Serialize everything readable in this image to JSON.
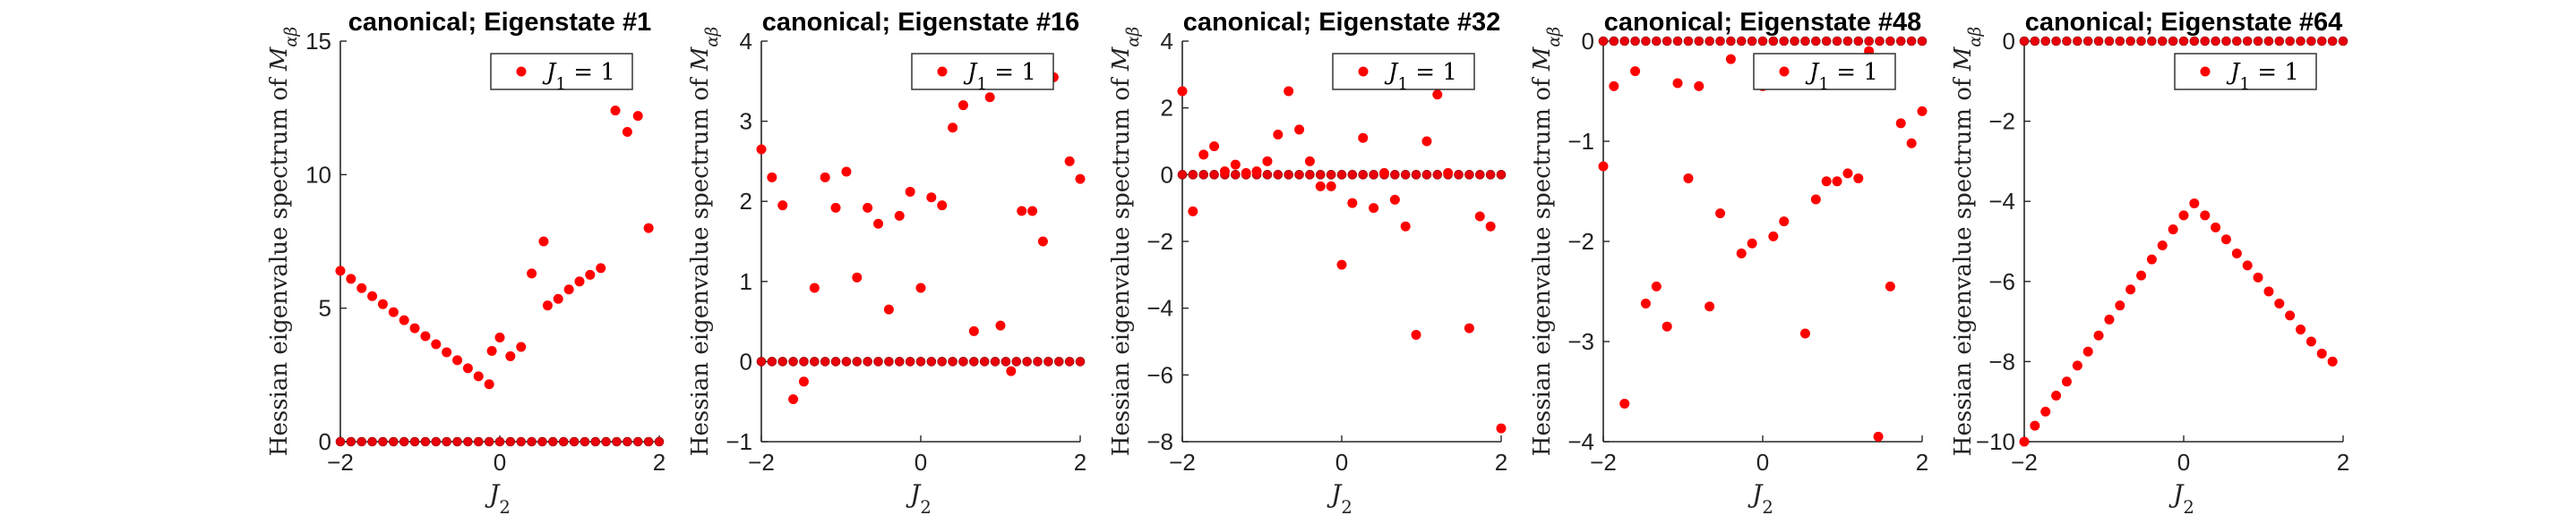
{
  "chart_data": [
    {
      "type": "scatter",
      "title": "canonical; Eigenstate #1",
      "xlabel": "J_2",
      "ylabel": "Hessian eigenvalue spectrum of M_{αβ}",
      "xlim": [
        -2,
        2
      ],
      "ylim": [
        0,
        15
      ],
      "xticks": [
        -2,
        0,
        2
      ],
      "yticks": [
        0,
        5,
        10,
        15
      ],
      "legend": [
        "J_1 = 1"
      ],
      "legend_position": "top-right",
      "color": "#ff0000",
      "zero_line": true,
      "points": [
        [
          -2.0,
          6.4
        ],
        [
          -1.867,
          6.1
        ],
        [
          -1.733,
          5.75
        ],
        [
          -1.6,
          5.45
        ],
        [
          -1.467,
          5.15
        ],
        [
          -1.333,
          4.85
        ],
        [
          -1.2,
          4.55
        ],
        [
          -1.067,
          4.25
        ],
        [
          -0.933,
          3.95
        ],
        [
          -0.8,
          3.65
        ],
        [
          -0.667,
          3.35
        ],
        [
          -0.533,
          3.05
        ],
        [
          -0.4,
          2.75
        ],
        [
          -0.267,
          2.45
        ],
        [
          -0.133,
          2.15
        ],
        [
          -0.1,
          3.4
        ],
        [
          0.0,
          3.9
        ],
        [
          0.133,
          3.2
        ],
        [
          0.267,
          3.55
        ],
        [
          0.4,
          6.3
        ],
        [
          0.55,
          7.5
        ],
        [
          0.6,
          5.1
        ],
        [
          0.733,
          5.35
        ],
        [
          0.867,
          5.7
        ],
        [
          1.0,
          6.0
        ],
        [
          1.133,
          6.25
        ],
        [
          1.267,
          6.5
        ],
        [
          1.45,
          12.4
        ],
        [
          1.6,
          11.6
        ],
        [
          1.733,
          12.2
        ],
        [
          1.867,
          8.0
        ]
      ]
    },
    {
      "type": "scatter",
      "title": "canonical; Eigenstate #16",
      "xlabel": "J_2",
      "ylabel": "Hessian eigenvalue spectrum of M_{αβ}",
      "xlim": [
        -2,
        2
      ],
      "ylim": [
        -1,
        4
      ],
      "xticks": [
        -2,
        0,
        2
      ],
      "yticks": [
        -1,
        0,
        1,
        2,
        3,
        4
      ],
      "legend": [
        "J_1 = 1"
      ],
      "legend_position": "top-right",
      "color": "#ff0000",
      "zero_line": true,
      "points": [
        [
          -2.0,
          2.65
        ],
        [
          -1.867,
          2.3
        ],
        [
          -1.733,
          1.95
        ],
        [
          -1.6,
          -0.47
        ],
        [
          -1.467,
          -0.25
        ],
        [
          -1.333,
          0.92
        ],
        [
          -1.2,
          2.3
        ],
        [
          -1.067,
          1.92
        ],
        [
          -0.933,
          2.37
        ],
        [
          -0.8,
          1.05
        ],
        [
          -0.667,
          1.92
        ],
        [
          -0.533,
          1.72
        ],
        [
          -0.4,
          0.65
        ],
        [
          -0.267,
          1.82
        ],
        [
          -0.133,
          2.12
        ],
        [
          0.0,
          0.92
        ],
        [
          0.133,
          2.05
        ],
        [
          0.267,
          1.95
        ],
        [
          0.4,
          2.92
        ],
        [
          0.533,
          3.2
        ],
        [
          0.667,
          0.38
        ],
        [
          0.867,
          3.3
        ],
        [
          1.0,
          0.45
        ],
        [
          1.133,
          -0.12
        ],
        [
          1.267,
          1.88
        ],
        [
          1.4,
          1.88
        ],
        [
          1.533,
          1.5
        ],
        [
          1.667,
          3.55
        ],
        [
          1.867,
          2.5
        ],
        [
          2.0,
          2.28
        ]
      ]
    },
    {
      "type": "scatter",
      "title": "canonical; Eigenstate #32",
      "xlabel": "J_2",
      "ylabel": "Hessian eigenvalue spectrum of M_{αβ}",
      "xlim": [
        -2,
        2
      ],
      "ylim": [
        -8,
        4
      ],
      "xticks": [
        -2,
        0,
        2
      ],
      "yticks": [
        -8,
        -6,
        -4,
        -2,
        0,
        2,
        4
      ],
      "legend": [
        "J_1 = 1"
      ],
      "legend_position": "top-right",
      "color": "#ff0000",
      "zero_line": true,
      "points": [
        [
          -2.0,
          2.5
        ],
        [
          -1.867,
          -1.1
        ],
        [
          -1.733,
          0.6
        ],
        [
          -1.6,
          0.85
        ],
        [
          -1.467,
          0.1
        ],
        [
          -1.333,
          0.3
        ],
        [
          -1.2,
          0.05
        ],
        [
          -1.067,
          0.1
        ],
        [
          -0.933,
          0.4
        ],
        [
          -0.8,
          1.2
        ],
        [
          -0.667,
          2.5
        ],
        [
          -0.533,
          1.35
        ],
        [
          -0.4,
          0.4
        ],
        [
          -0.267,
          -0.35
        ],
        [
          -0.133,
          -0.35
        ],
        [
          0.0,
          -2.7
        ],
        [
          0.133,
          -0.85
        ],
        [
          0.267,
          1.1
        ],
        [
          0.4,
          -1.0
        ],
        [
          0.533,
          0.05
        ],
        [
          0.667,
          -0.75
        ],
        [
          0.8,
          -1.55
        ],
        [
          0.933,
          -4.8
        ],
        [
          1.067,
          1.0
        ],
        [
          1.2,
          2.4
        ],
        [
          1.333,
          0.05
        ],
        [
          1.6,
          -4.6
        ],
        [
          1.733,
          -1.25
        ],
        [
          1.867,
          -1.55
        ],
        [
          2.0,
          -7.6
        ]
      ]
    },
    {
      "type": "scatter",
      "title": "canonical; Eigenstate #48",
      "xlabel": "J_2",
      "ylabel": "Hessian eigenvalue spectrum of M_{αβ}",
      "xlim": [
        -2,
        2
      ],
      "ylim": [
        -4,
        0
      ],
      "xticks": [
        -2,
        0,
        2
      ],
      "yticks": [
        -4,
        -3,
        -2,
        -1,
        0
      ],
      "legend": [
        "J_1 = 1"
      ],
      "legend_position": "top-right",
      "color": "#ff0000",
      "zero_line": true,
      "points": [
        [
          -2.0,
          -1.25
        ],
        [
          -1.867,
          -0.45
        ],
        [
          -1.733,
          -3.62
        ],
        [
          -1.6,
          -0.3
        ],
        [
          -1.467,
          -2.62
        ],
        [
          -1.333,
          -2.45
        ],
        [
          -1.2,
          -2.85
        ],
        [
          -1.067,
          -0.42
        ],
        [
          -0.933,
          -1.37
        ],
        [
          -0.8,
          -0.45
        ],
        [
          -0.667,
          -2.65
        ],
        [
          -0.533,
          -1.72
        ],
        [
          -0.4,
          -0.18
        ],
        [
          -0.267,
          -2.12
        ],
        [
          -0.133,
          -2.02
        ],
        [
          0.0,
          -0.45
        ],
        [
          0.133,
          -1.95
        ],
        [
          0.267,
          -1.8
        ],
        [
          0.4,
          -0.42
        ],
        [
          0.533,
          -2.92
        ],
        [
          0.667,
          -1.58
        ],
        [
          0.8,
          -1.4
        ],
        [
          0.933,
          -1.4
        ],
        [
          1.067,
          -1.32
        ],
        [
          1.2,
          -1.37
        ],
        [
          1.333,
          -0.1
        ],
        [
          1.45,
          -3.95
        ],
        [
          1.6,
          -2.45
        ],
        [
          1.733,
          -0.82
        ],
        [
          1.867,
          -1.02
        ],
        [
          2.0,
          -0.7
        ]
      ]
    },
    {
      "type": "scatter",
      "title": "canonical; Eigenstate #64",
      "xlabel": "J_2",
      "ylabel": "Hessian eigenvalue spectrum of M_{αβ}",
      "xlim": [
        -2,
        2
      ],
      "ylim": [
        -10,
        0
      ],
      "xticks": [
        -2,
        0,
        2
      ],
      "yticks": [
        -10,
        -8,
        -6,
        -4,
        -2,
        0
      ],
      "legend": [
        "J_1 = 1"
      ],
      "legend_position": "top-right",
      "color": "#ff0000",
      "zero_line": true,
      "points": [
        [
          -2.0,
          -10.0
        ],
        [
          -1.867,
          -9.6
        ],
        [
          -1.733,
          -9.25
        ],
        [
          -1.6,
          -8.85
        ],
        [
          -1.467,
          -8.5
        ],
        [
          -1.333,
          -8.1
        ],
        [
          -1.2,
          -7.75
        ],
        [
          -1.067,
          -7.35
        ],
        [
          -0.933,
          -6.95
        ],
        [
          -0.8,
          -6.6
        ],
        [
          -0.667,
          -6.2
        ],
        [
          -0.533,
          -5.85
        ],
        [
          -0.4,
          -5.45
        ],
        [
          -0.267,
          -5.1
        ],
        [
          -0.133,
          -4.7
        ],
        [
          0.0,
          -4.35
        ],
        [
          0.133,
          -4.05
        ],
        [
          0.267,
          -4.35
        ],
        [
          0.4,
          -4.65
        ],
        [
          0.533,
          -4.95
        ],
        [
          0.667,
          -5.3
        ],
        [
          0.8,
          -5.6
        ],
        [
          0.933,
          -5.9
        ],
        [
          1.067,
          -6.25
        ],
        [
          1.2,
          -6.55
        ],
        [
          1.333,
          -6.85
        ],
        [
          1.467,
          -7.2
        ],
        [
          1.6,
          -7.5
        ],
        [
          1.733,
          -7.8
        ],
        [
          1.867,
          -8.0
        ]
      ]
    }
  ]
}
